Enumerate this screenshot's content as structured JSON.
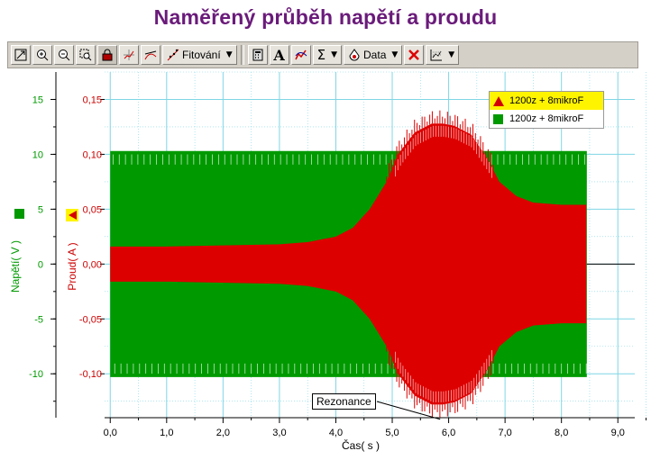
{
  "title": "Naměřený průběh napětí a proudu",
  "toolbar": {
    "fit_label": "Fitování",
    "data_label": "Data",
    "text_tool_label": "A",
    "sigma_label": "Σ"
  },
  "colors": {
    "voltage": "#009900",
    "current": "#dd0000",
    "grid": "#7fd6e6",
    "title": "#6a1b7a"
  },
  "chart_data": {
    "type": "line",
    "title": "Naměřený průběh napětí a proudu",
    "xlabel": "Čas( s )",
    "xlim": [
      -0.1,
      9.3
    ],
    "x_ticks": [
      "0,0",
      "1,0",
      "2,0",
      "3,0",
      "4,0",
      "5,0",
      "6,0",
      "7,0",
      "8,0",
      "9,0"
    ],
    "y_axes": [
      {
        "label": "Napětí( V )",
        "color": "#009900",
        "ylim": [
          -14,
          17.5
        ],
        "ticks": [
          "15",
          "10",
          "5",
          "0",
          "-5",
          "-10"
        ]
      },
      {
        "label": "Proud( A )",
        "color": "#cc0000",
        "ylim": [
          -0.14,
          0.175
        ],
        "ticks": [
          "0,15",
          "0,10",
          "0,05",
          "0,00",
          "-0,05",
          "-0,10"
        ]
      }
    ],
    "grid": true,
    "legend_position": "top-right",
    "series": [
      {
        "name": "1200z + 8mikroF",
        "quantity": "current",
        "marker": "triangle",
        "color": "#dd0000",
        "envelope_x": [
          0.0,
          1.0,
          2.0,
          3.0,
          3.5,
          4.0,
          4.3,
          4.6,
          4.9,
          5.1,
          5.4,
          5.7,
          5.9,
          6.1,
          6.4,
          6.7,
          6.9,
          7.2,
          7.5,
          8.0,
          8.45
        ],
        "envelope_amp": [
          0.016,
          0.016,
          0.017,
          0.018,
          0.02,
          0.025,
          0.033,
          0.05,
          0.075,
          0.1,
          0.12,
          0.128,
          0.128,
          0.126,
          0.118,
          0.095,
          0.075,
          0.062,
          0.056,
          0.054,
          0.054
        ]
      },
      {
        "name": "1200z + 8mikroF",
        "quantity": "voltage",
        "marker": "square",
        "color": "#009900",
        "envelope_x": [
          0.0,
          8.45
        ],
        "envelope_amp": [
          10.3,
          10.3
        ]
      }
    ],
    "annotations": [
      {
        "text": "Rezonance",
        "x": 5.85,
        "y_current": -0.125
      }
    ]
  }
}
